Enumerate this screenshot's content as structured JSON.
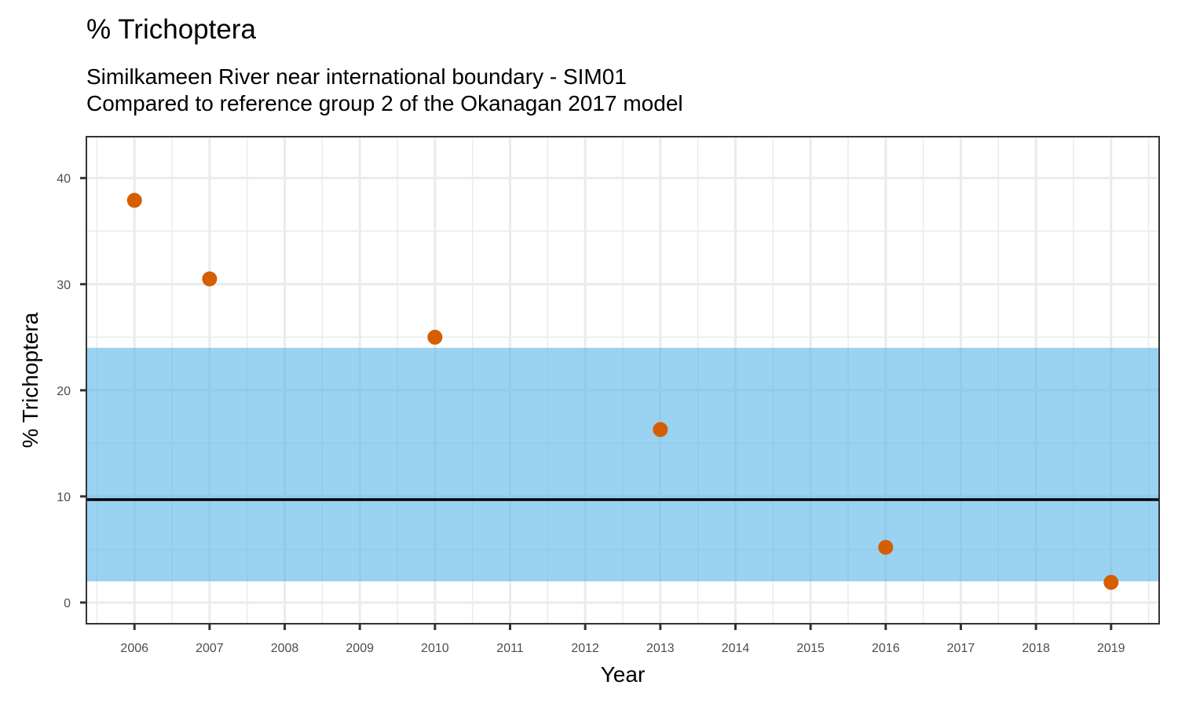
{
  "chart_data": {
    "type": "scatter",
    "title": "% Trichoptera",
    "subtitle": [
      "Similkameen River near international boundary - SIM01",
      "Compared to reference group 2 of the Okanagan 2017 model"
    ],
    "xlabel": "Year",
    "ylabel": "% Trichoptera",
    "xlim": [
      2005.36,
      2019.64
    ],
    "ylim": [
      -2.0,
      43.9
    ],
    "x_ticks": [
      2006,
      2007,
      2008,
      2009,
      2010,
      2011,
      2012,
      2013,
      2014,
      2015,
      2016,
      2017,
      2018,
      2019
    ],
    "y_ticks": [
      0,
      10,
      20,
      30,
      40
    ],
    "grid": true,
    "points": [
      {
        "x": 2006,
        "y": 37.9
      },
      {
        "x": 2007,
        "y": 30.5
      },
      {
        "x": 2010,
        "y": 25.0
      },
      {
        "x": 2013,
        "y": 16.3
      },
      {
        "x": 2016,
        "y": 5.2
      },
      {
        "x": 2019,
        "y": 1.9
      }
    ],
    "reference_band": {
      "lower": 2.0,
      "upper": 24.0
    },
    "reference_mean": 9.7,
    "colors": {
      "points": "#d55e00",
      "band": "#56b4e9",
      "mean_line": "#000000"
    }
  }
}
